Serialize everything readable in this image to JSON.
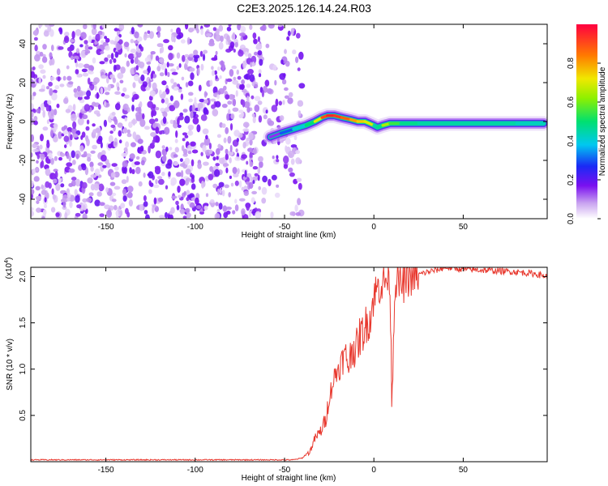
{
  "title": "C2E3.2025.126.14.24.R03",
  "chart_data": [
    {
      "type": "heatmap",
      "ylabel": "Frequency (Hz)",
      "xlabel": "Height of straight line (km)",
      "xlim": [
        -192,
        97
      ],
      "ylim": [
        -50,
        50
      ],
      "xticks": [
        -150,
        -100,
        -50,
        0,
        50
      ],
      "yticks": [
        -40,
        -20,
        0,
        20,
        40
      ],
      "noise_region_x": [
        -192,
        -40
      ],
      "ridge": {
        "x": [
          -58,
          -52,
          -45,
          -38,
          -33,
          -29,
          -26,
          -22,
          -18,
          -13,
          -9,
          -5,
          0,
          2,
          5,
          9,
          15,
          25,
          40,
          60,
          80,
          95
        ],
        "y": [
          -8,
          -6,
          -4,
          -2,
          0,
          2,
          3,
          3,
          2,
          1,
          0,
          0,
          -2,
          -3,
          -2,
          -1,
          -1,
          -1,
          -1,
          -1,
          -1,
          -1
        ],
        "amplitude": [
          0.05,
          0.25,
          0.35,
          0.45,
          0.55,
          0.85,
          0.95,
          0.95,
          0.9,
          0.85,
          0.75,
          0.75,
          0.65,
          0.25,
          0.7,
          0.6,
          0.5,
          0.45,
          0.45,
          0.45,
          0.45,
          0.4
        ]
      }
    },
    {
      "type": "colorbar",
      "label": "Normalized spectral amplitude",
      "range": [
        0,
        1
      ],
      "ticks": [
        "0.0",
        "0.2",
        "0.4",
        "0.6",
        "0.8"
      ],
      "tick_values": [
        0,
        0.2,
        0.4,
        0.6,
        0.8
      ]
    },
    {
      "type": "line",
      "ylabel": "SNR (10 * v/v)",
      "xlabel": "Height of straight line (km)",
      "multiplier": "(x10",
      "multiplier_exp": "4",
      "xlim": [
        -192,
        97
      ],
      "ylim": [
        0,
        2.1
      ],
      "xticks": [
        -150,
        -100,
        -50,
        0,
        50
      ],
      "yticks": [
        "0.5",
        "1.0",
        "1.5",
        "2.0"
      ],
      "ytick_values": [
        0.5,
        1.0,
        1.5,
        2.0
      ],
      "color": "#e8392f",
      "series": [
        {
          "x": [
            -192,
            -100,
            -45,
            -40,
            -38,
            -36,
            -33,
            -30,
            -27,
            -25,
            -22,
            -20,
            -18,
            -16,
            -14,
            -12,
            -10,
            -8,
            -6,
            -4,
            -2,
            0,
            3,
            6,
            9,
            10,
            12,
            15,
            18,
            20,
            25,
            30,
            35,
            40,
            50,
            60,
            70,
            80,
            90,
            97
          ],
          "y": [
            0.02,
            0.02,
            0.02,
            0.04,
            0.08,
            0.1,
            0.25,
            0.32,
            0.45,
            0.7,
            0.92,
            1.0,
            1.08,
            1.15,
            1.05,
            1.25,
            1.2,
            1.35,
            1.4,
            1.5,
            1.55,
            1.8,
            1.9,
            1.95,
            2.0,
            0.7,
            2.0,
            1.9,
            1.95,
            2.0,
            2.02,
            2.05,
            2.07,
            2.1,
            2.08,
            2.07,
            2.06,
            2.05,
            2.03,
            2.0
          ]
        }
      ]
    }
  ]
}
